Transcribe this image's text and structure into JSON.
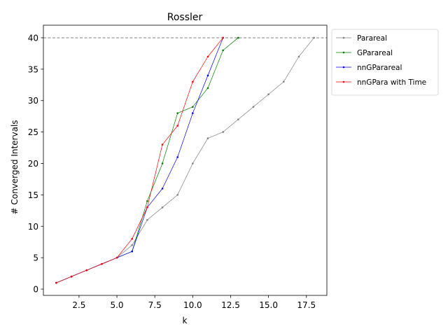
{
  "chart_data": {
    "type": "line",
    "title": "Rossler",
    "xlabel": "k",
    "ylabel": "# Converged Intervals",
    "xlim": [
      0.15,
      18.85
    ],
    "ylim": [
      -1,
      42
    ],
    "xticks": [
      2.5,
      5.0,
      7.5,
      10.0,
      12.5,
      15.0,
      17.5
    ],
    "xtick_labels": [
      "2.5",
      "5.0",
      "7.5",
      "10.0",
      "12.5",
      "15.0",
      "17.5"
    ],
    "yticks": [
      0,
      5,
      10,
      15,
      20,
      25,
      30,
      35,
      40
    ],
    "ytick_labels": [
      "0",
      "5",
      "10",
      "15",
      "20",
      "25",
      "30",
      "35",
      "40"
    ],
    "grid": false,
    "legend_position": "outside-top-right",
    "reference_line": {
      "y": 40,
      "style": "dashed",
      "color": "#808080"
    },
    "series": [
      {
        "name": "Parareal",
        "color": "#808080",
        "x": [
          1,
          2,
          3,
          4,
          5,
          6,
          7,
          8,
          9,
          10,
          11,
          12,
          13,
          14,
          15,
          16,
          17,
          18
        ],
        "y": [
          1,
          2,
          3,
          4,
          5,
          7,
          11,
          13,
          15,
          20,
          24,
          25,
          27,
          29,
          31,
          33,
          37,
          40
        ]
      },
      {
        "name": "GParareal",
        "color": "#008000",
        "x": [
          1,
          2,
          3,
          4,
          5,
          6,
          7,
          8,
          9,
          10,
          11,
          12,
          13
        ],
        "y": [
          1,
          2,
          3,
          4,
          5,
          6,
          14,
          20,
          28,
          29,
          32,
          38,
          40
        ]
      },
      {
        "name": "nnGParareal",
        "color": "#0000ff",
        "x": [
          1,
          2,
          3,
          4,
          5,
          6,
          7,
          8,
          9,
          10,
          11,
          12
        ],
        "y": [
          1,
          2,
          3,
          4,
          5,
          6,
          13,
          16,
          21,
          28,
          34,
          40
        ]
      },
      {
        "name": "nnGPara with Time",
        "color": "#ff0000",
        "x": [
          1,
          2,
          3,
          4,
          5,
          6,
          7,
          8,
          9,
          10,
          11,
          12
        ],
        "y": [
          1,
          2,
          3,
          4,
          5,
          8,
          13,
          23,
          26,
          33,
          37,
          40
        ]
      }
    ]
  }
}
